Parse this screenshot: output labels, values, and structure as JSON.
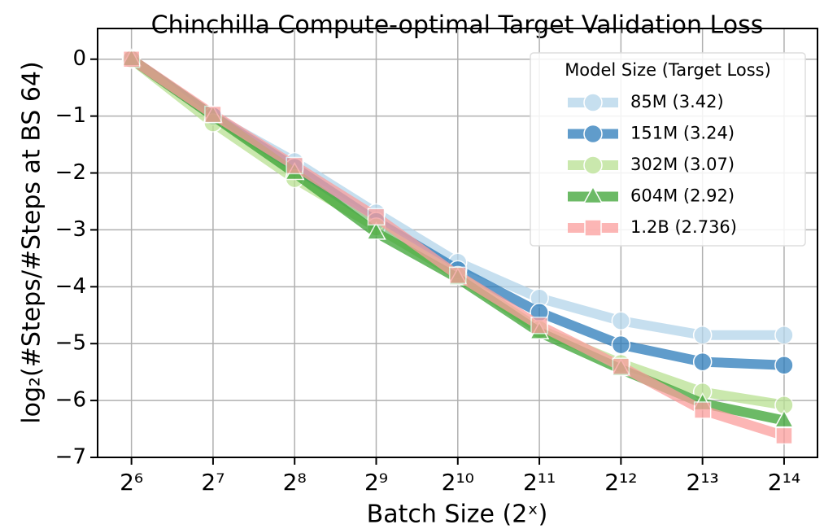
{
  "chart_data": {
    "type": "line",
    "title": "Chinchilla Compute-optimal Target Validation Loss",
    "xlabel": "Batch Size (2ˣ)",
    "ylabel": "log₂(#Steps/#Steps at BS 64)",
    "x": [
      64,
      128,
      256,
      512,
      1024,
      2048,
      4096,
      8192,
      16384
    ],
    "xscale": "log2",
    "xlim": [
      48,
      21760
    ],
    "xticks": [
      {
        "value": 64,
        "label": "2⁶"
      },
      {
        "value": 128,
        "label": "2⁷"
      },
      {
        "value": 256,
        "label": "2⁸"
      },
      {
        "value": 512,
        "label": "2⁹"
      },
      {
        "value": 1024,
        "label": "2¹⁰"
      },
      {
        "value": 2048,
        "label": "2¹¹"
      },
      {
        "value": 4096,
        "label": "2¹²"
      },
      {
        "value": 8192,
        "label": "2¹³"
      },
      {
        "value": 16384,
        "label": "2¹⁴"
      }
    ],
    "ylim": [
      -7,
      0.54
    ],
    "yticks": [
      {
        "value": 0,
        "label": "0"
      },
      {
        "value": -1,
        "label": "−1"
      },
      {
        "value": -2,
        "label": "−2"
      },
      {
        "value": -3,
        "label": "−3"
      },
      {
        "value": -4,
        "label": "−4"
      },
      {
        "value": -5,
        "label": "−5"
      },
      {
        "value": -6,
        "label": "−6"
      },
      {
        "value": -7,
        "label": "−7"
      }
    ],
    "grid": true,
    "legend_title": "Model Size (Target Loss)",
    "legend": "upper right",
    "series": [
      {
        "name": "85M (3.42)",
        "color": "#b4d5ea",
        "marker": "circle",
        "values": [
          0,
          -1.0,
          -1.8,
          -2.7,
          -3.57,
          -4.2,
          -4.6,
          -4.85,
          -4.85
        ]
      },
      {
        "name": "151M (3.24)",
        "color": "#2b7bba",
        "marker": "circle",
        "values": [
          0,
          -1.0,
          -1.9,
          -2.85,
          -3.7,
          -4.45,
          -5.02,
          -5.32,
          -5.38
        ]
      },
      {
        "name": "302M (3.07)",
        "color": "#b9e192",
        "marker": "circle",
        "values": [
          0,
          -1.12,
          -2.1,
          -2.95,
          -3.8,
          -4.75,
          -5.35,
          -5.85,
          -6.08
        ]
      },
      {
        "name": "604M (2.92)",
        "color": "#3ba334",
        "marker": "triangle",
        "values": [
          0,
          -1.0,
          -2.0,
          -3.05,
          -3.85,
          -4.8,
          -5.45,
          -6.05,
          -6.35
        ]
      },
      {
        "name": "1.2B (2.736)",
        "color": "#fb9e9d",
        "marker": "square",
        "values": [
          0,
          -0.97,
          -1.87,
          -2.77,
          -3.8,
          -4.68,
          -5.4,
          -6.17,
          -6.62
        ]
      }
    ]
  }
}
